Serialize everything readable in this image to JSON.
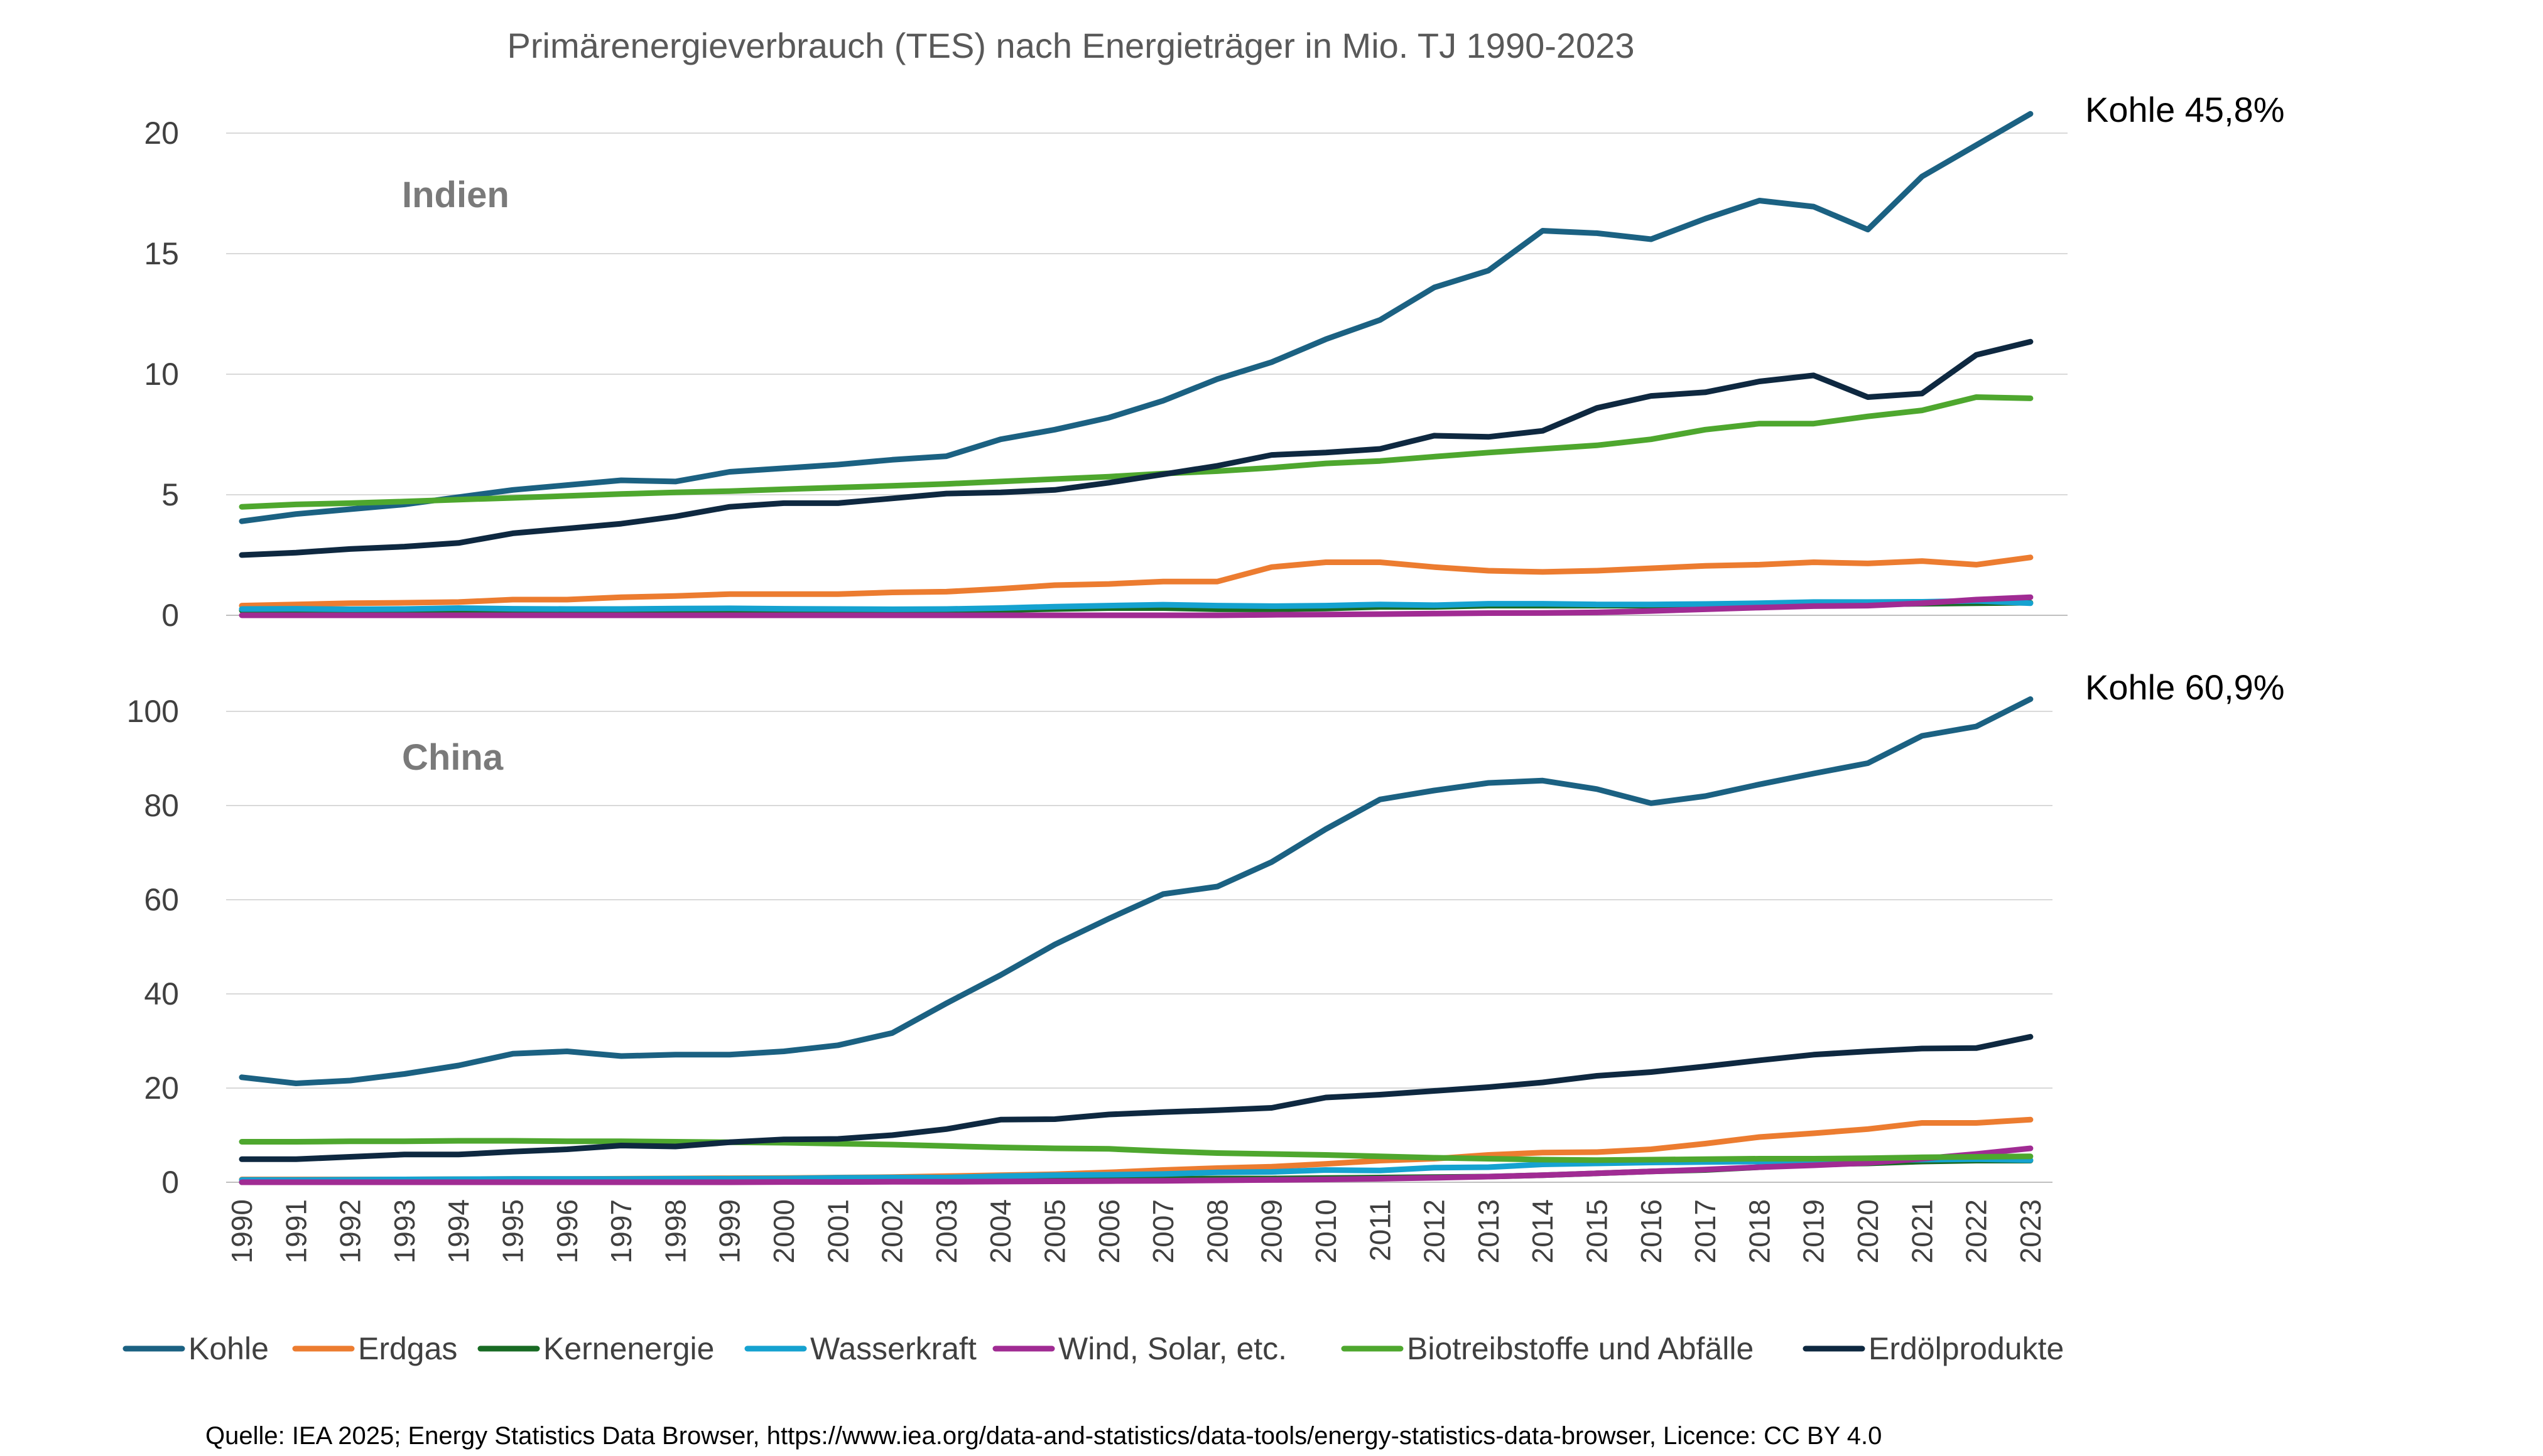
{
  "chart_data": {
    "type": "line",
    "title": "Primärenergieverbrauch (TES) nach Energieträger in Mio. TJ 1990-2023",
    "x": [
      1990,
      1991,
      1992,
      1993,
      1994,
      1995,
      1996,
      1997,
      1998,
      1999,
      2000,
      2001,
      2002,
      2003,
      2004,
      2005,
      2006,
      2007,
      2008,
      2009,
      2010,
      2011,
      2012,
      2013,
      2014,
      2015,
      2016,
      2017,
      2018,
      2019,
      2020,
      2021,
      2022,
      2023
    ],
    "legend": [
      {
        "name": "Kohle",
        "color": "#1b6182"
      },
      {
        "name": "Erdgas",
        "color": "#ec7c30"
      },
      {
        "name": "Kernenergie",
        "color": "#196b24"
      },
      {
        "name": "Wasserkraft",
        "color": "#15a2d0"
      },
      {
        "name": "Wind, Solar, etc.",
        "color": "#a02b93"
      },
      {
        "name": "Biotreibstoffe und Abfälle",
        "color": "#4ea72e"
      },
      {
        "name": "Erdölprodukte",
        "color": "#0e2840"
      }
    ],
    "legend_position": "bottom",
    "source": "Quelle: IEA 2025; Energy Statistics Data Browser, https://www.iea.org/data-and-statistics/data-tools/energy-statistics-data-browser, Licence: CC BY 4.0",
    "panels": [
      {
        "label": "Indien",
        "annotation": "Kohle 45,8%",
        "ylim": [
          0,
          20
        ],
        "yticks": [
          0,
          5,
          10,
          15,
          20
        ],
        "grid": true,
        "series": [
          {
            "name": "Kohle",
            "values": [
              3.9,
              4.2,
              4.4,
              4.6,
              4.9,
              5.2,
              5.4,
              5.6,
              5.55,
              5.95,
              6.1,
              6.25,
              6.45,
              6.6,
              7.3,
              7.7,
              8.2,
              8.9,
              9.8,
              10.5,
              11.45,
              12.25,
              13.6,
              14.3,
              15.95,
              15.85,
              15.6,
              16.45,
              17.2,
              16.95,
              16.0,
              18.2,
              19.5,
              20.8
            ]
          },
          {
            "name": "Erdgas",
            "values": [
              0.4,
              0.45,
              0.5,
              0.52,
              0.55,
              0.65,
              0.65,
              0.75,
              0.8,
              0.88,
              0.88,
              0.88,
              0.95,
              0.98,
              1.1,
              1.25,
              1.3,
              1.4,
              1.4,
              2.0,
              2.2,
              2.2,
              2.0,
              1.85,
              1.8,
              1.85,
              1.95,
              2.05,
              2.1,
              2.2,
              2.15,
              2.25,
              2.1,
              2.4
            ]
          },
          {
            "name": "Kernenergie",
            "values": [
              0.2,
              0.2,
              0.2,
              0.2,
              0.2,
              0.2,
              0.18,
              0.2,
              0.22,
              0.22,
              0.22,
              0.22,
              0.22,
              0.22,
              0.22,
              0.26,
              0.3,
              0.3,
              0.25,
              0.25,
              0.28,
              0.35,
              0.35,
              0.4,
              0.4,
              0.4,
              0.4,
              0.42,
              0.45,
              0.5,
              0.45,
              0.48,
              0.5,
              0.52
            ]
          },
          {
            "name": "Wasserkraft",
            "values": [
              0.26,
              0.27,
              0.25,
              0.26,
              0.3,
              0.27,
              0.26,
              0.26,
              0.28,
              0.29,
              0.27,
              0.26,
              0.25,
              0.26,
              0.3,
              0.36,
              0.4,
              0.44,
              0.4,
              0.38,
              0.4,
              0.45,
              0.42,
              0.48,
              0.48,
              0.45,
              0.45,
              0.47,
              0.5,
              0.55,
              0.55,
              0.56,
              0.6,
              0.5
            ]
          },
          {
            "name": "Wind, Solar, etc.",
            "values": [
              0.0,
              0.0,
              0.0,
              0.0,
              0.0,
              0.0,
              0.0,
              0.0,
              0.0,
              0.0,
              0.0,
              0.0,
              0.0,
              0.0,
              0.0,
              0.0,
              0.0,
              0.0,
              0.0,
              0.02,
              0.03,
              0.05,
              0.07,
              0.09,
              0.1,
              0.12,
              0.18,
              0.25,
              0.32,
              0.38,
              0.4,
              0.5,
              0.65,
              0.75
            ]
          },
          {
            "name": "Biotreibstoffe und Abfälle",
            "values": [
              4.5,
              4.6,
              4.65,
              4.72,
              4.8,
              4.87,
              4.95,
              5.03,
              5.1,
              5.15,
              5.23,
              5.3,
              5.37,
              5.45,
              5.55,
              5.65,
              5.75,
              5.88,
              5.98,
              6.12,
              6.3,
              6.4,
              6.58,
              6.75,
              6.9,
              7.05,
              7.3,
              7.7,
              7.95,
              7.95,
              8.25,
              8.5,
              9.05,
              9.0
            ]
          },
          {
            "name": "Erdölprodukte",
            "values": [
              2.5,
              2.6,
              2.75,
              2.85,
              3.0,
              3.4,
              3.6,
              3.8,
              4.1,
              4.5,
              4.65,
              4.65,
              4.85,
              5.05,
              5.1,
              5.2,
              5.5,
              5.85,
              6.2,
              6.65,
              6.75,
              6.9,
              7.45,
              7.4,
              7.65,
              8.6,
              9.1,
              9.25,
              9.7,
              9.95,
              9.05,
              9.2,
              10.8,
              11.35
            ]
          }
        ]
      },
      {
        "label": "China",
        "annotation": "Kohle 60,9%",
        "ylim": [
          0,
          100
        ],
        "yticks": [
          0,
          20,
          40,
          60,
          80,
          100
        ],
        "grid": true,
        "series": [
          {
            "name": "Kohle",
            "values": [
              22.3,
              21.0,
              21.6,
              23.0,
              24.8,
              27.3,
              27.8,
              26.8,
              27.1,
              27.1,
              27.8,
              29.1,
              31.7,
              38.0,
              44.0,
              50.5,
              56.0,
              61.2,
              62.8,
              68.0,
              75.0,
              81.3,
              83.2,
              84.8,
              85.3,
              83.5,
              80.5,
              82.0,
              84.5,
              86.8,
              89.0,
              94.8,
              96.8,
              102.6
            ]
          },
          {
            "name": "Erdgas",
            "values": [
              0.6,
              0.6,
              0.6,
              0.6,
              0.65,
              0.7,
              0.7,
              0.75,
              0.8,
              0.85,
              0.9,
              1.0,
              1.1,
              1.3,
              1.5,
              1.7,
              2.1,
              2.6,
              3.0,
              3.3,
              3.9,
              4.6,
              5.0,
              5.8,
              6.3,
              6.4,
              7.0,
              8.2,
              9.6,
              10.4,
              11.3,
              12.6,
              12.6,
              13.3
            ]
          },
          {
            "name": "Kernenergie",
            "values": [
              0.0,
              0.0,
              0.0,
              0.0,
              0.05,
              0.2,
              0.2,
              0.2,
              0.2,
              0.2,
              0.25,
              0.3,
              0.3,
              0.5,
              0.6,
              0.6,
              0.6,
              0.7,
              0.8,
              0.8,
              0.9,
              1.0,
              1.1,
              1.2,
              1.5,
              1.9,
              2.3,
              2.6,
              3.2,
              3.8,
              4.0,
              4.4,
              4.6,
              4.6
            ]
          },
          {
            "name": "Wasserkraft",
            "values": [
              0.5,
              0.5,
              0.55,
              0.6,
              0.65,
              0.7,
              0.7,
              0.7,
              0.75,
              0.75,
              0.8,
              0.95,
              1.0,
              1.0,
              1.3,
              1.5,
              1.6,
              1.75,
              2.1,
              2.2,
              2.6,
              2.5,
              3.1,
              3.2,
              3.8,
              4.0,
              4.2,
              4.3,
              4.4,
              4.6,
              4.7,
              4.8,
              4.9,
              4.7
            ]
          },
          {
            "name": "Wind, Solar, etc.",
            "values": [
              0.0,
              0.0,
              0.0,
              0.0,
              0.0,
              0.0,
              0.0,
              0.0,
              0.0,
              0.0,
              0.05,
              0.05,
              0.1,
              0.1,
              0.15,
              0.2,
              0.25,
              0.3,
              0.4,
              0.5,
              0.6,
              0.75,
              0.95,
              1.2,
              1.5,
              1.9,
              2.3,
              2.7,
              3.2,
              3.6,
              4.1,
              5.0,
              6.0,
              7.2
            ]
          },
          {
            "name": "Biotreibstoffe und Abfälle",
            "values": [
              8.6,
              8.6,
              8.7,
              8.7,
              8.8,
              8.8,
              8.7,
              8.7,
              8.6,
              8.5,
              8.4,
              8.2,
              8.0,
              7.7,
              7.4,
              7.2,
              7.1,
              6.6,
              6.2,
              6.0,
              5.8,
              5.5,
              5.2,
              5.0,
              4.8,
              4.7,
              4.8,
              4.9,
              5.0,
              5.0,
              5.1,
              5.3,
              5.4,
              5.5
            ]
          },
          {
            "name": "Erdölprodukte",
            "values": [
              4.9,
              4.9,
              5.4,
              5.9,
              5.9,
              6.5,
              7.0,
              7.8,
              7.6,
              8.5,
              9.1,
              9.2,
              10.0,
              11.3,
              13.3,
              13.4,
              14.4,
              14.9,
              15.3,
              15.8,
              18.0,
              18.6,
              19.4,
              20.2,
              21.2,
              22.6,
              23.4,
              24.6,
              25.9,
              27.1,
              27.8,
              28.4,
              28.5,
              30.9
            ]
          }
        ]
      }
    ]
  }
}
